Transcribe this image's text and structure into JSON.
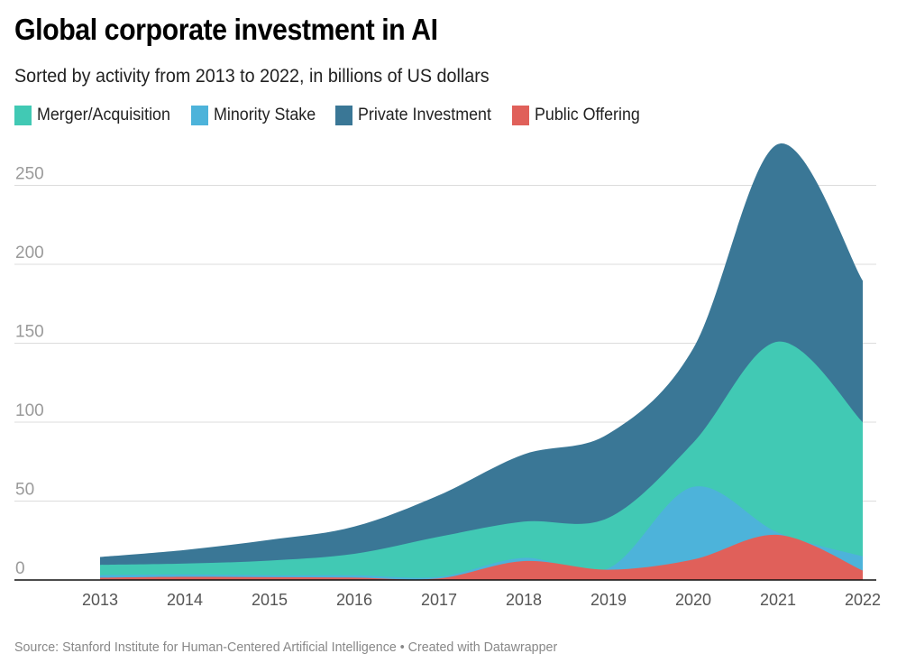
{
  "header": {
    "title": "Global corporate investment in AI",
    "subtitle": "Sorted by activity from 2013 to 2022, in billions of US dollars"
  },
  "footer": {
    "source": "Source: Stanford Institute for Human-Centered Artificial Intelligence • Created with Datawrapper"
  },
  "chart_data": {
    "type": "area",
    "stacked": true,
    "title": "Global corporate investment in AI",
    "subtitle": "Sorted by activity from 2013 to 2022, in billions of US dollars",
    "xlabel": "",
    "ylabel": "",
    "ylim": [
      0,
      280
    ],
    "yticks": [
      0,
      50,
      100,
      150,
      200,
      250
    ],
    "ytick_labels": [
      "0",
      "50",
      "100",
      "150",
      "200",
      "250"
    ],
    "grid": true,
    "legend_position": "top-left",
    "categories": [
      "2013",
      "2014",
      "2015",
      "2016",
      "2017",
      "2018",
      "2019",
      "2020",
      "2021",
      "2022"
    ],
    "stack_order_bottom_to_top": [
      "Public Offering",
      "Minority Stake",
      "Merger/Acquisition",
      "Private Investment"
    ],
    "legend": [
      {
        "name": "Merger/Acquisition",
        "color": "#41c9b4"
      },
      {
        "name": "Minority Stake",
        "color": "#4db3da"
      },
      {
        "name": "Private Investment",
        "color": "#3a7796"
      },
      {
        "name": "Public Offering",
        "color": "#e0605a"
      }
    ],
    "series": [
      {
        "name": "Public Offering",
        "color": "#e0605a",
        "values": [
          1.5,
          2.0,
          1.8,
          1.5,
          1.0,
          12.0,
          6.5,
          13.0,
          28.6,
          6.0
        ]
      },
      {
        "name": "Minority Stake",
        "color": "#4db3da",
        "values": [
          1.6,
          1.5,
          1.2,
          1.5,
          1.0,
          2.0,
          0.9,
          46.0,
          1.4,
          9.0
        ]
      },
      {
        "name": "Merger/Acquisition",
        "color": "#41c9b4",
        "values": [
          6.5,
          6.9,
          9.3,
          13.6,
          25.4,
          23.0,
          32.0,
          28.0,
          121.0,
          85.0
        ]
      },
      {
        "name": "Private Investment",
        "color": "#3a7796",
        "values": [
          4.97,
          8.64,
          13.13,
          17.22,
          26.32,
          42.62,
          53.22,
          59.74,
          125.1,
          89.6
        ]
      }
    ],
    "totals": [
      14.57,
      19.04,
      25.43,
      33.82,
      53.72,
      79.62,
      92.62,
      146.74,
      276.1,
      189.6
    ],
    "source": "Source: Stanford Institute for Human-Centered Artificial Intelligence • Created with Datawrapper"
  }
}
